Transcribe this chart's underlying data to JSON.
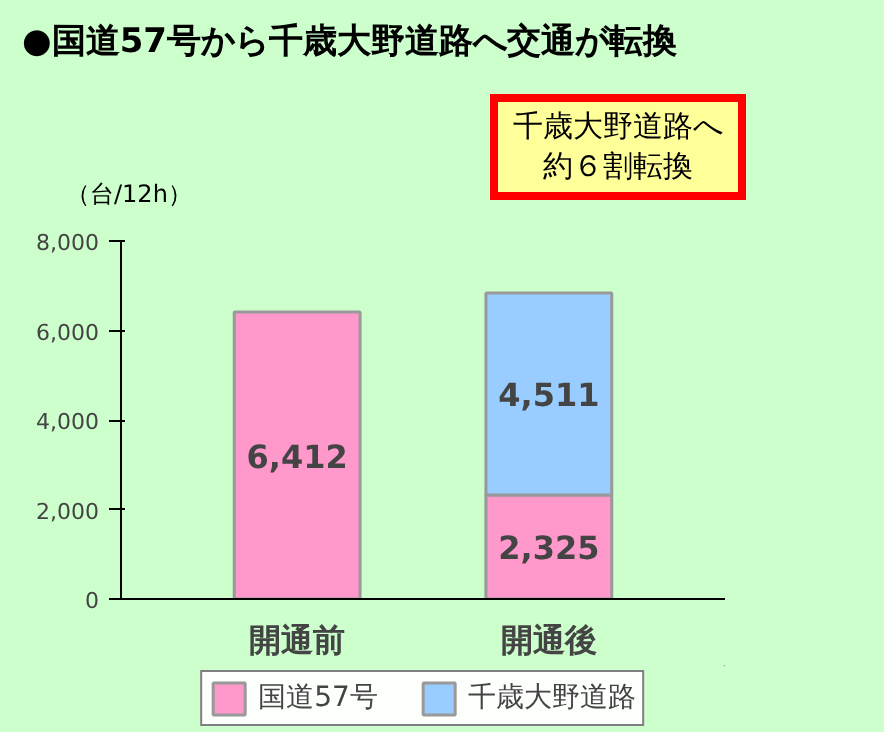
{
  "chart_data": {
    "type": "bar",
    "title": "●国道57号から千歳大野道路へ交通が転換",
    "ylabel": "（台/12h）",
    "annotations": [
      "千歳大野道路へ約６割転換"
    ],
    "categories": [
      "開通前",
      "開通後"
    ],
    "stacked": true,
    "series": [
      {
        "name": "国道57号",
        "color": "#ff99cc",
        "values": [
          6412,
          2325
        ],
        "value_labels": [
          "6,412",
          "2,325"
        ]
      },
      {
        "name": "千歳大野道路",
        "color": "#99ccff",
        "values": [
          null,
          4511
        ],
        "value_labels": [
          null,
          "4,511"
        ]
      }
    ],
    "ylim": [
      0,
      8000
    ],
    "yticks": [
      0,
      {
        "value": 2000,
        "label": "2,000"
      },
      {
        "value": 4000,
        "label": "4,000"
      },
      {
        "value": 6000,
        "label": "6,000"
      },
      {
        "value": 8000,
        "label": "8,000"
      }
    ],
    "legend": "bottom"
  }
}
